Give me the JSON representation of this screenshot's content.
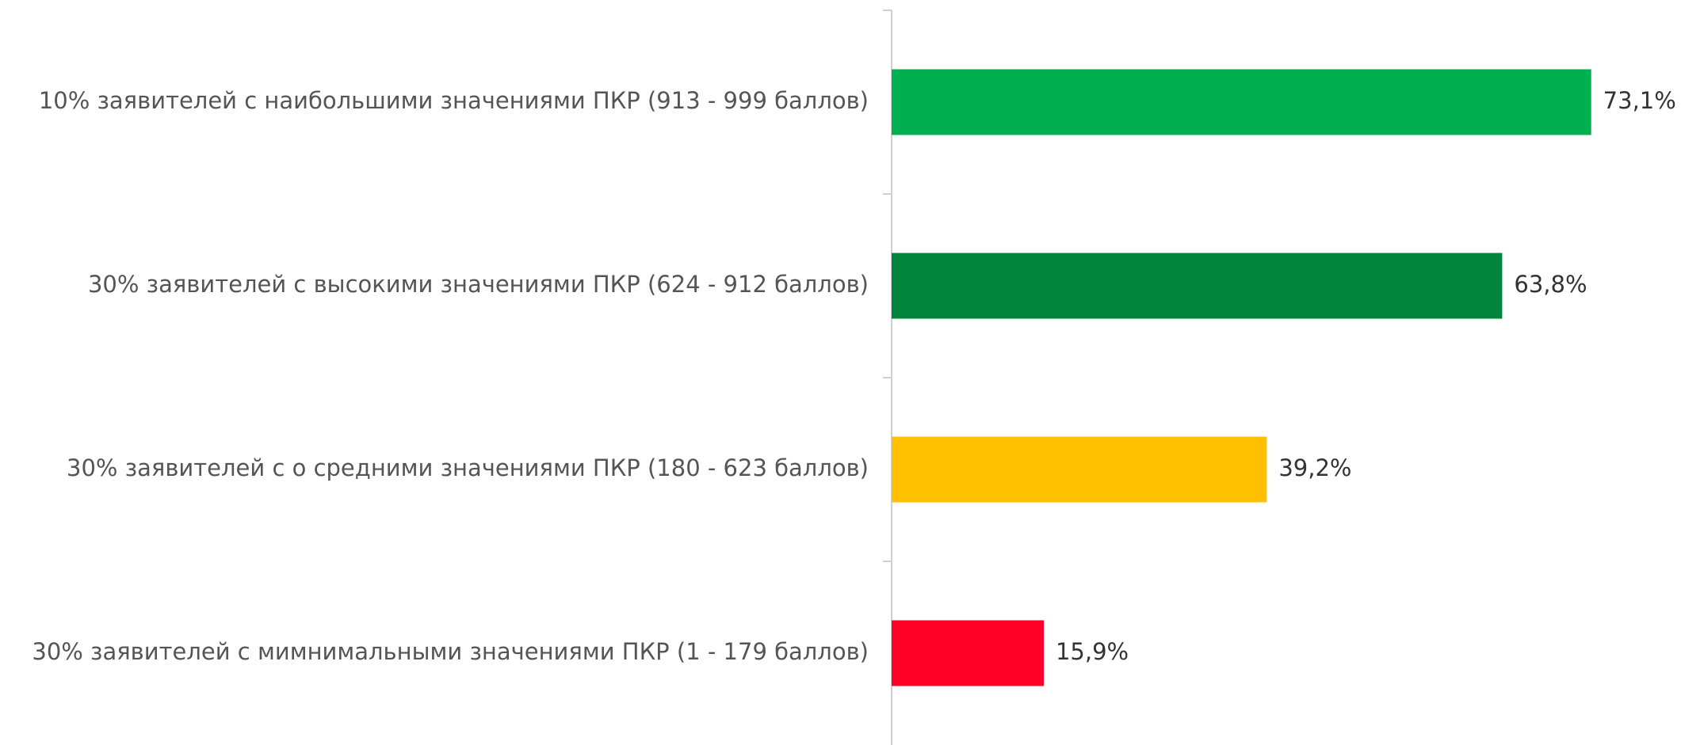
{
  "chart_data": {
    "type": "barh",
    "categories": [
      "10% заявителей с наибольшими значениями ПКР (913 - 999 баллов)",
      "30% заявителей с высокими значениями ПКР (624 - 912 баллов)",
      "30% заявителей с о средними значениями ПКР (180 - 623 баллов)",
      "30% заявителей с мимнимальными значениями ПКР (1 - 179 баллов)"
    ],
    "values": [
      73.1,
      63.8,
      39.2,
      15.9
    ],
    "value_labels": [
      "73,1%",
      "63,8%",
      "39,2%",
      "15,9%"
    ],
    "colors": [
      "#00b050",
      "#00843d",
      "#ffc000",
      "#ff0026"
    ],
    "xlim": [
      0,
      80
    ]
  }
}
